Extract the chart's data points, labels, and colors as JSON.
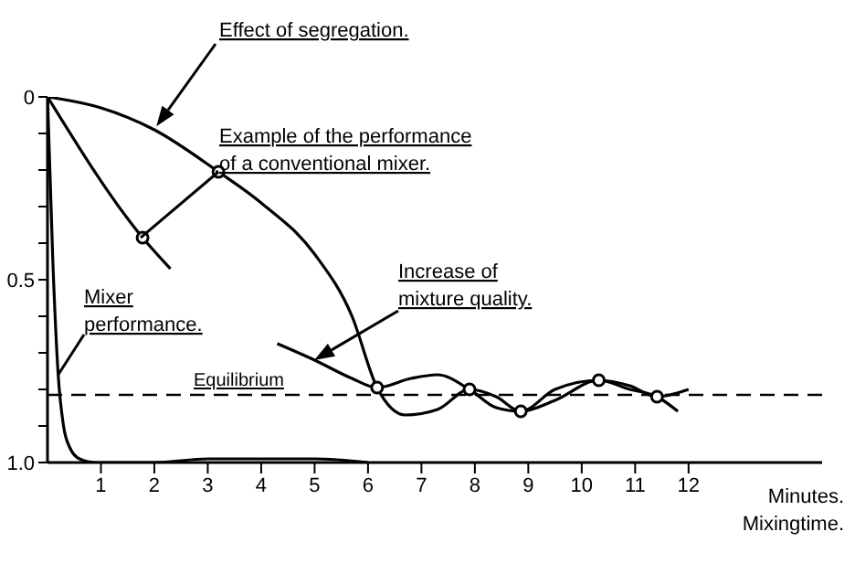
{
  "chart_data": {
    "type": "line",
    "xlabel": "Minutes. Mixingtime.",
    "xlim": [
      0,
      14.5
    ],
    "xticks": [
      1,
      2,
      3,
      4,
      5,
      6,
      7,
      8,
      9,
      10,
      11,
      12
    ],
    "ylim": [
      1,
      0
    ],
    "yticks": [
      0,
      {
        "value": 0.1,
        "label": null
      },
      {
        "value": 0.2,
        "label": null
      },
      {
        "value": 0.3,
        "label": null
      },
      {
        "value": 0.4,
        "label": null
      },
      0.5,
      {
        "value": 0.6,
        "label": null
      },
      {
        "value": 0.7,
        "label": null
      },
      {
        "value": 0.8,
        "label": null
      },
      {
        "value": 0.9,
        "label": null
      },
      {
        "value": 1,
        "label": "1.0"
      }
    ],
    "series": [
      {
        "color": "#000000",
        "x": [
          0,
          1,
          2,
          3.2,
          4,
          5,
          5.7,
          6.17,
          6.7,
          7.3,
          7.9,
          8.4,
          8.86,
          9.5,
          10.32,
          10.9,
          11.41,
          11.8
        ],
        "values": [
          0,
          0.03,
          0.09,
          0.205,
          0.29,
          0.43,
          0.6,
          0.795,
          0.87,
          0.855,
          0.8,
          0.82,
          0.86,
          0.8,
          0.775,
          0.8,
          0.82,
          0.86
        ]
      },
      {
        "color": "#000000",
        "x": [
          0,
          1.78,
          2.3
        ],
        "values": [
          0,
          0.385,
          0.47
        ]
      },
      {
        "color": "#000000",
        "x": [
          4.3,
          5,
          5.7,
          6.17,
          6.8,
          7.3,
          7.9,
          8.4,
          8.86,
          9.5,
          10.32,
          10.9,
          11.41,
          12
        ],
        "values": [
          0.675,
          0.72,
          0.77,
          0.795,
          0.77,
          0.76,
          0.8,
          0.85,
          0.86,
          0.83,
          0.775,
          0.79,
          0.82,
          0.8
        ]
      },
      {
        "color": "#000000",
        "x": [
          0,
          0.1,
          0.2,
          0.3,
          0.42,
          0.6,
          0.9,
          2,
          3,
          4,
          5,
          6
        ],
        "values": [
          0,
          0.45,
          0.76,
          0.9,
          0.96,
          0.99,
          1,
          1,
          0.99,
          0.99,
          0.99,
          1
        ]
      },
      {
        "type": "scatter",
        "color": "#000000",
        "x": [
          1.78,
          3.2,
          6.17,
          7.9,
          8.86,
          10.32,
          11.41
        ],
        "values": [
          0.385,
          0.205,
          0.795,
          0.8,
          0.86,
          0.775,
          0.82
        ]
      }
    ],
    "ref_lines": [
      {
        "axis": "y",
        "value": 0.815,
        "label": "Equilibrium",
        "line_style": "dashed",
        "color": "#000000"
      }
    ],
    "annotations": [
      "Effect of segregation.",
      {
        "text": "Example of the performance of a conventional mixer.",
        "x": 3.2,
        "y": 0.205
      },
      {
        "text": "Mixer performance.",
        "x": 0.2,
        "y": 0.76
      },
      "Increase of mixture quality."
    ]
  }
}
